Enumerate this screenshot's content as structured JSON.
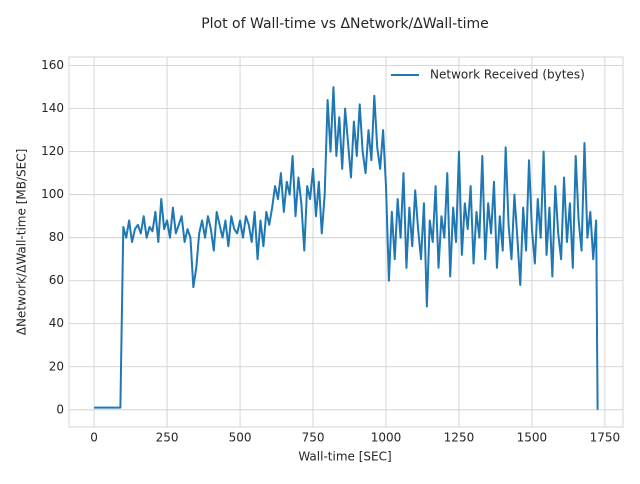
{
  "chart_data": {
    "type": "line",
    "title": "Plot of Wall-time vs ΔNetwork/ΔWall-time",
    "x_label": "Wall-time [SEC]",
    "y_label": "ΔNetwork/ΔWall-time [MB/SEC]",
    "x": [
      0,
      10,
      20,
      30,
      40,
      50,
      60,
      70,
      80,
      90,
      100,
      110,
      120,
      130,
      140,
      150,
      160,
      170,
      180,
      190,
      200,
      210,
      220,
      230,
      240,
      250,
      260,
      270,
      280,
      290,
      300,
      310,
      320,
      330,
      340,
      350,
      360,
      370,
      380,
      390,
      400,
      410,
      420,
      430,
      440,
      450,
      460,
      470,
      480,
      490,
      500,
      510,
      520,
      530,
      540,
      550,
      560,
      570,
      580,
      590,
      600,
      610,
      620,
      630,
      640,
      650,
      660,
      670,
      680,
      690,
      700,
      710,
      720,
      730,
      740,
      750,
      760,
      770,
      780,
      790,
      800,
      810,
      820,
      830,
      840,
      850,
      860,
      870,
      880,
      890,
      900,
      910,
      920,
      930,
      940,
      950,
      960,
      970,
      980,
      990,
      1000,
      1010,
      1020,
      1030,
      1040,
      1050,
      1060,
      1070,
      1080,
      1090,
      1100,
      1110,
      1120,
      1130,
      1140,
      1150,
      1160,
      1170,
      1180,
      1190,
      1200,
      1210,
      1220,
      1230,
      1240,
      1250,
      1260,
      1270,
      1280,
      1290,
      1300,
      1310,
      1320,
      1330,
      1340,
      1350,
      1360,
      1370,
      1380,
      1390,
      1400,
      1410,
      1420,
      1430,
      1440,
      1450,
      1460,
      1470,
      1480,
      1490,
      1500,
      1510,
      1520,
      1530,
      1540,
      1550,
      1560,
      1570,
      1580,
      1590,
      1600,
      1610,
      1620,
      1630,
      1640,
      1650,
      1660,
      1670,
      1680,
      1690,
      1700,
      1710,
      1720,
      1725
    ],
    "series": [
      {
        "name": "Network Received (bytes)",
        "color": "#1f77b4",
        "values": [
          1,
          1,
          1,
          1,
          1,
          1,
          1,
          1,
          1,
          1,
          85,
          80,
          88,
          78,
          84,
          86,
          82,
          90,
          80,
          85,
          83,
          92,
          78,
          98,
          84,
          88,
          80,
          94,
          82,
          86,
          90,
          78,
          84,
          80,
          57,
          66,
          82,
          88,
          80,
          90,
          84,
          74,
          92,
          86,
          80,
          88,
          76,
          90,
          84,
          82,
          88,
          80,
          90,
          86,
          78,
          92,
          70,
          88,
          76,
          92,
          86,
          94,
          104,
          98,
          110,
          92,
          106,
          100,
          118,
          90,
          108,
          96,
          74,
          104,
          98,
          112,
          90,
          106,
          82,
          100,
          144,
          120,
          150,
          118,
          136,
          112,
          140,
          124,
          108,
          134,
          118,
          142,
          120,
          110,
          130,
          116,
          146,
          122,
          112,
          130,
          104,
          60,
          92,
          70,
          98,
          80,
          110,
          66,
          94,
          76,
          102,
          84,
          70,
          96,
          48,
          88,
          78,
          104,
          66,
          90,
          80,
          110,
          62,
          94,
          78,
          120,
          72,
          96,
          84,
          104,
          68,
          92,
          80,
          118,
          70,
          96,
          82,
          106,
          66,
          90,
          74,
          122,
          86,
          70,
          100,
          80,
          58,
          94,
          74,
          116,
          84,
          68,
          98,
          80,
          120,
          72,
          94,
          62,
          104,
          82,
          70,
          108,
          78,
          96,
          66,
          118,
          88,
          74,
          124,
          80,
          92,
          70,
          88,
          0
        ]
      }
    ],
    "xlim": [
      -86,
      1812
    ],
    "xticks": [
      0,
      250,
      500,
      750,
      1000,
      1250,
      1500,
      1750
    ],
    "ylim": [
      -8,
      164
    ],
    "yticks": [
      0,
      20,
      40,
      60,
      80,
      100,
      120,
      140,
      160
    ],
    "grid": true,
    "legend": "upper right"
  }
}
